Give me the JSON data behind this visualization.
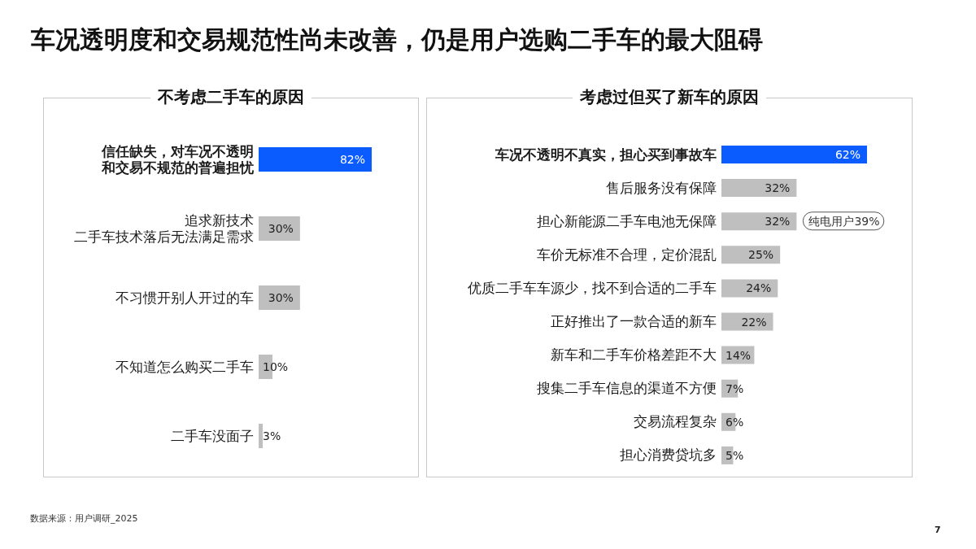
{
  "chart_data": [
    {
      "type": "bar",
      "orientation": "horizontal",
      "title": "不考虑二手车的原因",
      "categories": [
        "信任缺失，对车况不透明和交易不规范的普遍担忧",
        "追求新技术二手车技术落后无法满足需求",
        "不习惯开别人开过的车",
        "不知道怎么购买二手车",
        "二手车没面子"
      ],
      "values": [
        82,
        30,
        30,
        10,
        3
      ],
      "colors": [
        "#0a5cff",
        "#bfbfbf",
        "#bfbfbf",
        "#bfbfbf",
        "#bfbfbf"
      ],
      "value_labels": [
        "82%",
        "30%",
        "30%",
        "10%",
        "3%"
      ],
      "tick_labels": "y",
      "annotations": [
        "车况透明度和交易规范性尚未改善，仍是用户选购二手车的最大阻碍",
        "数据来源：用户调研_2025"
      ]
    },
    {
      "type": "bar",
      "orientation": "horizontal",
      "title": "考虑过但买了新车的原因",
      "categories": [
        "车况不透明不真实，担心买到事故车",
        "售后服务没有保障",
        "担心新能源二手车电池无保障",
        "车价无标准不合理，定价混乱",
        "优质二手车车源少，找不到合适的二手车",
        "正好推出了一款合适的新车",
        "新车和二手车价格差距不大",
        "搜集二手车信息的渠道不方便",
        "交易流程复杂",
        "担心消费贷坑多"
      ],
      "values": [
        62,
        32,
        32,
        25,
        24,
        22,
        14,
        7,
        6,
        5
      ],
      "colors": [
        "#0a5cff",
        "#bfbfbf",
        "#bfbfbf",
        "#bfbfbf",
        "#bfbfbf",
        "#bfbfbf",
        "#bfbfbf",
        "#bfbfbf",
        "#bfbfbf",
        "#bfbfbf"
      ],
      "value_labels": [
        "62%",
        "32%",
        "32%",
        "25%",
        "24%",
        "22%",
        "14%",
        "7%",
        "6%",
        "5%"
      ],
      "tick_labels": "y",
      "annotations": [
        {
          "text": "纯电用户39%",
          "x": 32,
          "y": "担心新能源二手车电池无保障"
        },
        "7"
      ]
    }
  ]
}
